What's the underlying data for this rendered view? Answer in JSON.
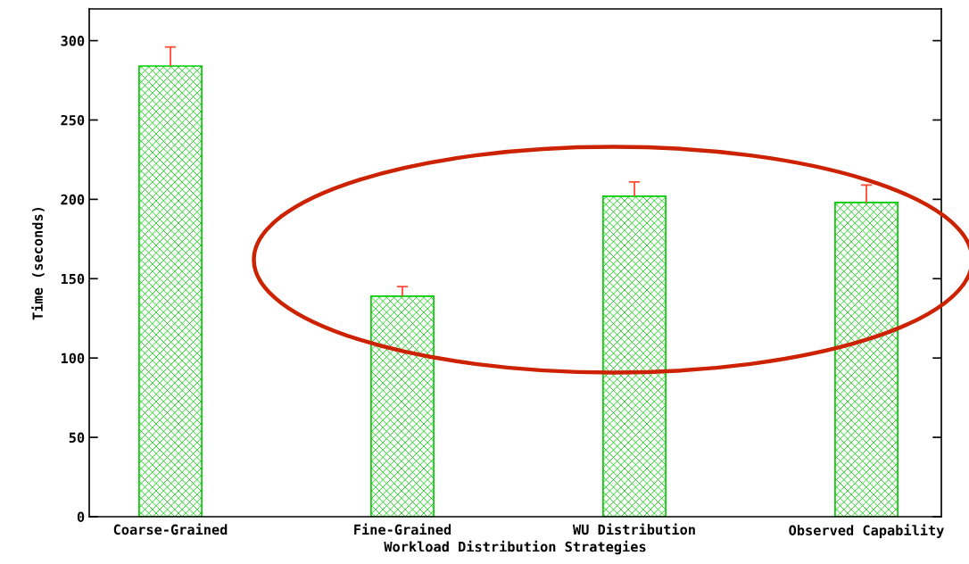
{
  "chart_data": {
    "type": "bar",
    "xlabel": "Workload Distribution Strategies",
    "ylabel": "Time (seconds)",
    "categories": [
      "Coarse-Grained",
      "Fine-Grained",
      "WU Distribution",
      "Observed Capability"
    ],
    "values": [
      284,
      139,
      202,
      198
    ],
    "errors": [
      [
        284,
        296
      ],
      [
        139,
        145
      ],
      [
        202,
        211
      ],
      [
        198,
        209
      ]
    ],
    "color": "#00cc00",
    "ylim": [
      0,
      320
    ],
    "yticks": [
      0,
      50,
      100,
      150,
      200,
      250,
      300
    ],
    "grid": false,
    "legend": false
  }
}
